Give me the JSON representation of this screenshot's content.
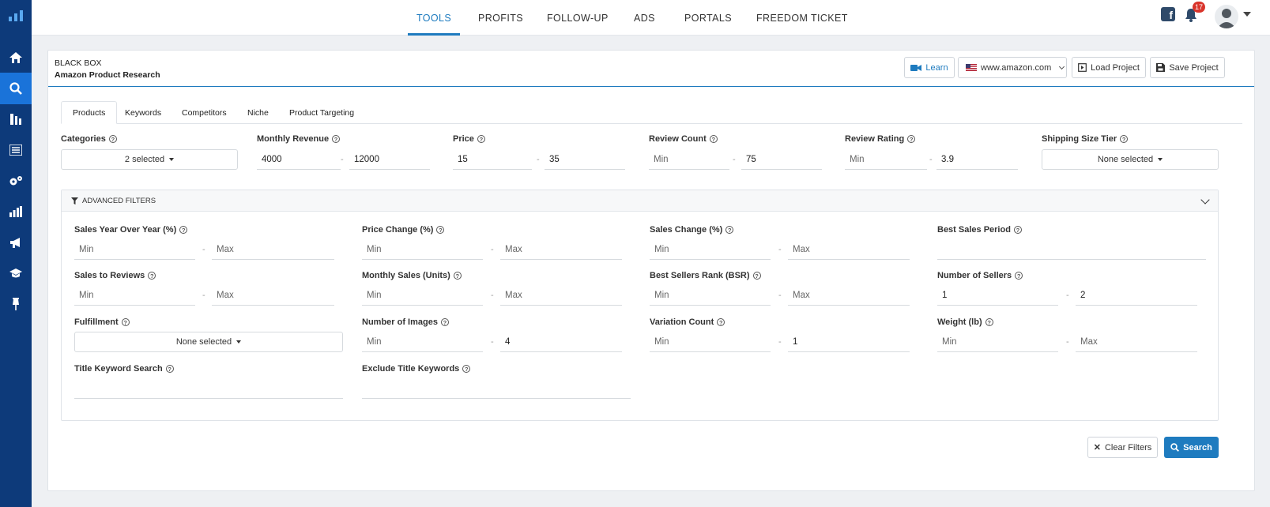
{
  "nav": {
    "items": [
      "TOOLS",
      "PROFITS",
      "FOLLOW-UP",
      "ADS",
      "PORTALS",
      "FREEDOM TICKET"
    ],
    "active": "TOOLS",
    "notification_count": "17"
  },
  "sidebar": {
    "items": [
      "logo",
      "home-icon",
      "search-icon",
      "tools-icon",
      "list-icon",
      "gears-icon",
      "chart-icon",
      "megaphone-icon",
      "graduation-icon",
      "pin-icon"
    ],
    "active": "search-icon"
  },
  "header": {
    "title": "BLACK BOX",
    "subtitle": "Amazon Product Research",
    "learn_label": "Learn",
    "marketplace": "www.amazon.com",
    "load_label": "Load Project",
    "save_label": "Save Project"
  },
  "tabs": [
    "Products",
    "Keywords",
    "Competitors",
    "Niche",
    "Product Targeting"
  ],
  "filters": {
    "categories": {
      "label": "Categories",
      "value": "2 selected"
    },
    "monthly_revenue": {
      "label": "Monthly Revenue",
      "min": "4000",
      "max": "12000"
    },
    "price": {
      "label": "Price",
      "min": "15",
      "max": "35"
    },
    "review_count": {
      "label": "Review Count",
      "min": "Min",
      "max": "75"
    },
    "review_rating": {
      "label": "Review Rating",
      "min": "Min",
      "max": "3.9"
    },
    "shipping_size_tier": {
      "label": "Shipping Size Tier",
      "value": "None selected"
    }
  },
  "advanced": {
    "title": "ADVANCED FILTERS",
    "sales_yoy": {
      "label": "Sales Year Over Year (%)",
      "min": "Min",
      "max": "Max"
    },
    "price_change": {
      "label": "Price Change (%)",
      "min": "Min",
      "max": "Max"
    },
    "sales_change": {
      "label": "Sales Change (%)",
      "min": "Min",
      "max": "Max"
    },
    "best_sales_period": {
      "label": "Best Sales Period",
      "value": ""
    },
    "sales_to_reviews": {
      "label": "Sales to Reviews",
      "min": "Min",
      "max": "Max"
    },
    "monthly_sales_units": {
      "label": "Monthly Sales (Units)",
      "min": "Min",
      "max": "Max"
    },
    "bsr": {
      "label": "Best Sellers Rank (BSR)",
      "min": "Min",
      "max": "Max"
    },
    "number_of_sellers": {
      "label": "Number of Sellers",
      "min": "1",
      "max": "2"
    },
    "fulfillment": {
      "label": "Fulfillment",
      "value": "None selected"
    },
    "number_of_images": {
      "label": "Number of Images",
      "min": "Min",
      "max": "4"
    },
    "variation_count": {
      "label": "Variation Count",
      "min": "Min",
      "max": "1"
    },
    "weight": {
      "label": "Weight (lb)",
      "min": "Min",
      "max": "Max"
    },
    "title_keyword_search": {
      "label": "Title Keyword Search",
      "value": ""
    },
    "exclude_title_keywords": {
      "label": "Exclude Title Keywords",
      "value": ""
    }
  },
  "actions": {
    "clear_label": "Clear Filters",
    "search_label": "Search"
  },
  "colors": {
    "sidebar": "#0d3a7a",
    "sidebar_active": "#1a73d9",
    "accent": "#1e7bbf",
    "badge": "#d9342b"
  }
}
